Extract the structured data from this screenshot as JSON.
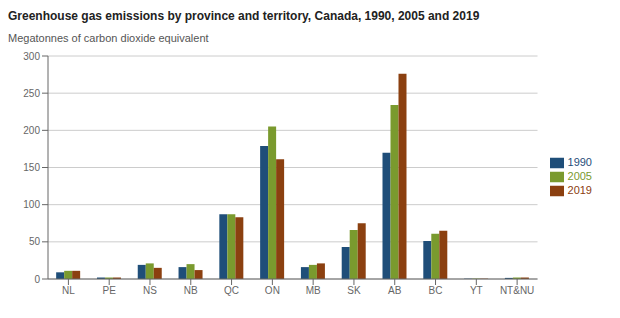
{
  "chart_data": {
    "type": "bar",
    "title": "Greenhouse gas emissions by province and territory, Canada, 1990, 2005 and 2019",
    "ylabel": "Megatonnes of carbon dioxide equivalent",
    "categories": [
      "NL",
      "PE",
      "NS",
      "NB",
      "QC",
      "ON",
      "MB",
      "SK",
      "AB",
      "BC",
      "YT",
      "NT&NU"
    ],
    "series": [
      {
        "name": "1990",
        "color": "#1f4e79",
        "values": [
          9,
          2,
          19,
          16,
          87,
          179,
          16,
          43,
          170,
          51,
          0.5,
          1.5
        ]
      },
      {
        "name": "2005",
        "color": "#7a9a2e",
        "values": [
          11,
          2,
          21,
          20,
          87,
          205,
          19,
          66,
          234,
          61,
          0.6,
          2
        ]
      },
      {
        "name": "2019",
        "color": "#8b4010",
        "values": [
          11,
          2,
          15,
          12,
          83,
          161,
          21,
          75,
          276,
          65,
          0.5,
          2
        ]
      }
    ],
    "ylim": [
      0,
      300
    ],
    "yticks": [
      0,
      50,
      100,
      150,
      200,
      250,
      300
    ],
    "grid": true,
    "legend": "right"
  }
}
